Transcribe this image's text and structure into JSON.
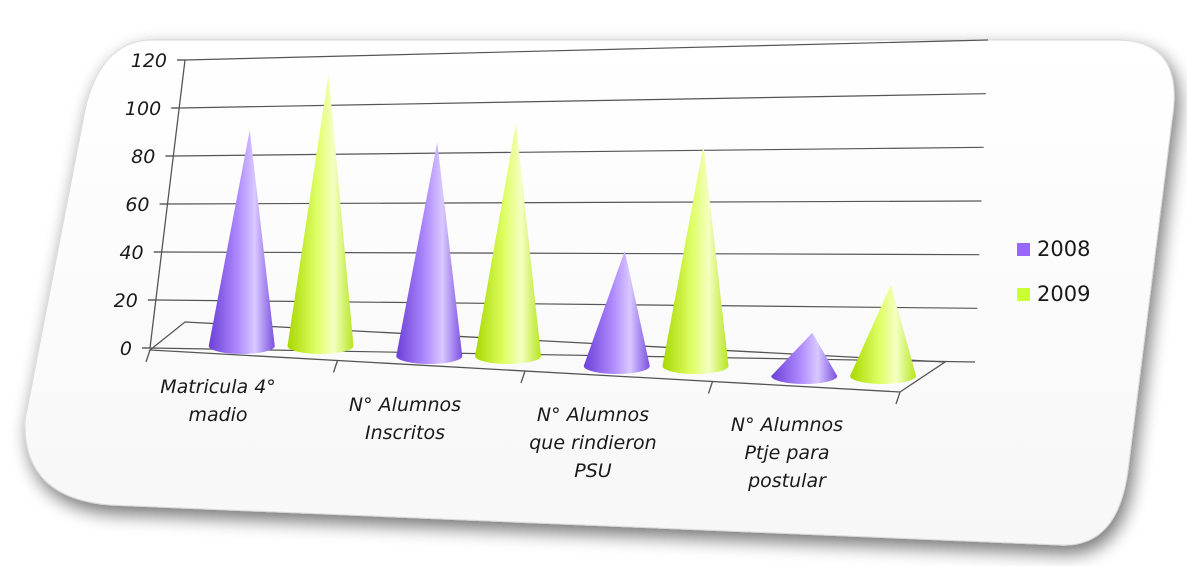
{
  "chart_data": {
    "type": "bar",
    "style": "3d-cone",
    "categories": [
      [
        "Matricula 4°",
        "madio"
      ],
      [
        "N° Alumnos",
        "Inscritos"
      ],
      [
        "N° Alumnos",
        "que rindieron",
        "PSU"
      ],
      [
        "N° Alumnos",
        "Ptje  para",
        "postular"
      ]
    ],
    "series": [
      {
        "name": "2008",
        "values": [
          90,
          89,
          48,
          18
        ],
        "color": "#9966ff"
      },
      {
        "name": "2009",
        "values": [
          113,
          97,
          92,
          38
        ],
        "color": "#ccff33"
      }
    ],
    "ylim": [
      0,
      120
    ],
    "yticks": [
      "0",
      "20",
      "40",
      "60",
      "80",
      "100",
      "120"
    ],
    "grid": true,
    "legend": "right"
  }
}
